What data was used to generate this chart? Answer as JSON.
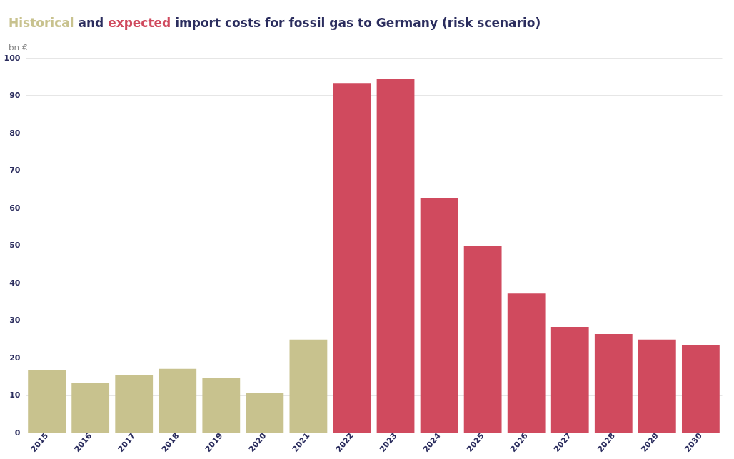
{
  "chart_data": {
    "type": "bar",
    "title": "Historical and expected import costs for fossil gas to Germany (risk scenario)",
    "ylabel": "bn €",
    "categories": [
      "2015",
      "2016",
      "2017",
      "2018",
      "2019",
      "2020",
      "2021",
      "2022",
      "2023",
      "2024",
      "2025",
      "2026",
      "2027",
      "2028",
      "2029",
      "2030"
    ],
    "values": [
      16.6,
      13.3,
      15.4,
      17.0,
      14.5,
      10.5,
      24.8,
      93.3,
      94.5,
      62.5,
      49.9,
      37.1,
      28.2,
      26.3,
      24.8,
      23.4
    ],
    "colors": [
      "#c8c28e",
      "#c8c28e",
      "#c8c28e",
      "#c8c28e",
      "#c8c28e",
      "#c8c28e",
      "#c8c28e",
      "#d04a5e",
      "#d04a5e",
      "#d04a5e",
      "#d04a5e",
      "#d04a5e",
      "#d04a5e",
      "#d04a5e",
      "#d04a5e",
      "#d04a5e"
    ],
    "ylim": [
      0,
      100
    ],
    "yticks": [
      0,
      10,
      20,
      30,
      40,
      50,
      60,
      70,
      80,
      90,
      100
    ],
    "grid": "y",
    "legend": false
  }
}
